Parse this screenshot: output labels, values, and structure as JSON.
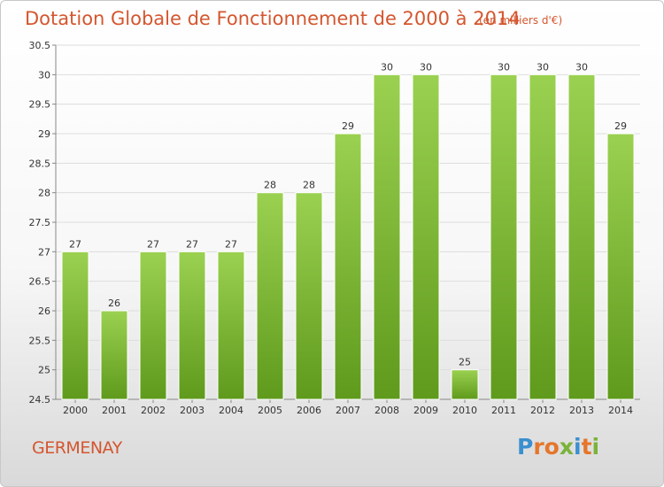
{
  "header": {
    "title": "Dotation Globale de Fonctionnement de 2000 à 2014",
    "subtitle": "(en milliers d'€)"
  },
  "footer": {
    "commune": "GERMENAY",
    "logo": {
      "letters": [
        "P",
        "r",
        "o",
        "x",
        "i",
        "t",
        "i"
      ],
      "colors": [
        "#3a8fd0",
        "#e5762b",
        "#e5762b",
        "#7ab33a",
        "#3a8fd0",
        "#e5762b",
        "#7ab33a"
      ]
    }
  },
  "chart_data": {
    "type": "bar",
    "categories": [
      "2000",
      "2001",
      "2002",
      "2003",
      "2004",
      "2005",
      "2006",
      "2007",
      "2008",
      "2009",
      "2010",
      "2011",
      "2012",
      "2013",
      "2014"
    ],
    "values": [
      27,
      26,
      27,
      27,
      27,
      28,
      28,
      29,
      30,
      30,
      25,
      30,
      30,
      30,
      29
    ],
    "value_labels": [
      "27",
      "26",
      "27",
      "27",
      "27",
      "28",
      "28",
      "29",
      "30",
      "30",
      "25",
      "30",
      "30",
      "30",
      "29"
    ],
    "y_ticks": [
      "24.5",
      "25",
      "25.5",
      "26",
      "26.5",
      "27",
      "27.5",
      "28",
      "28.5",
      "29",
      "29.5",
      "30",
      "30.5"
    ],
    "ylim": [
      24.5,
      30.5
    ],
    "grid": true,
    "bar_color_top": "#9bd151",
    "bar_color_bottom": "#5f9a1c"
  }
}
